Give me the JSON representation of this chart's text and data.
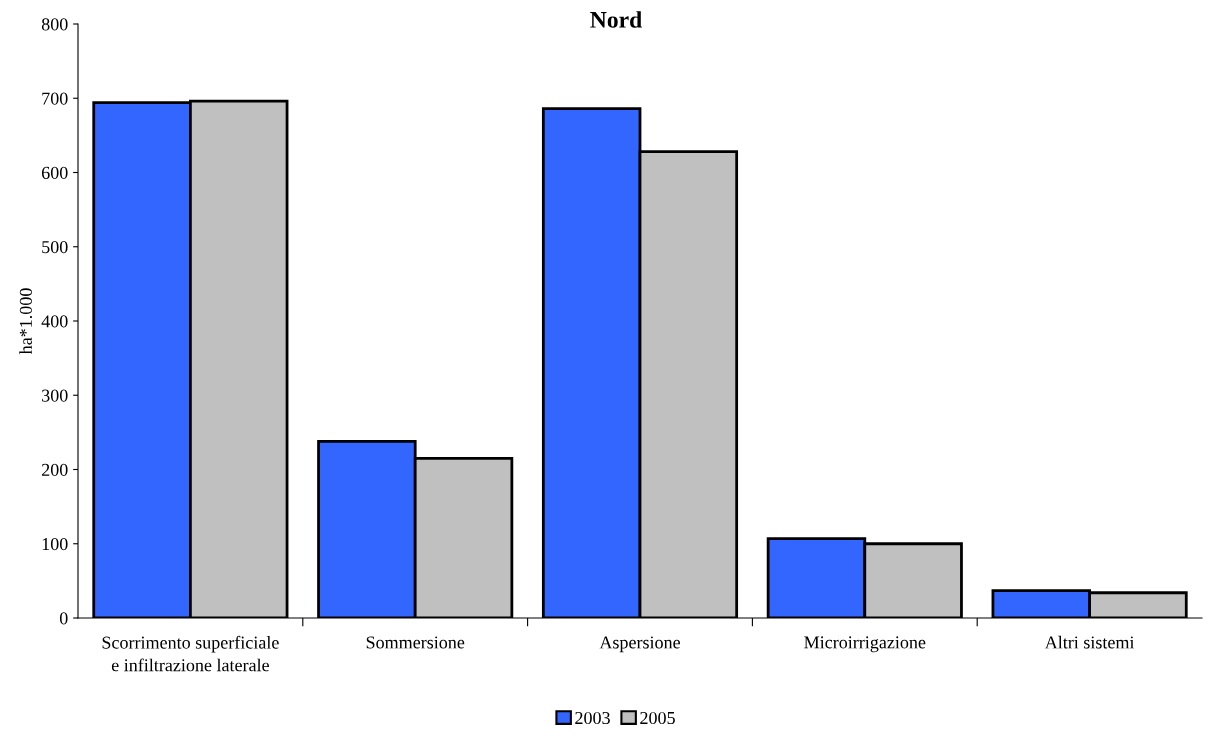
{
  "chart_data": {
    "type": "bar",
    "title": "Nord",
    "ylabel": "ha*1.000",
    "categories": [
      "Scorrimento superficiale\ne infiltrazione laterale",
      "Sommersione",
      "Aspersione",
      "Microirrigazione",
      "Altri sistemi"
    ],
    "series": [
      {
        "name": "2003",
        "color": "#3366ff",
        "values": [
          694,
          238,
          686,
          107,
          37
        ]
      },
      {
        "name": "2005",
        "color": "#c0c0c0",
        "values": [
          696,
          215,
          628,
          100,
          34
        ]
      }
    ],
    "ylim": [
      0,
      800
    ],
    "yticks": [
      0,
      100,
      200,
      300,
      400,
      500,
      600,
      700,
      800
    ],
    "grid": false,
    "legend": "bottom"
  }
}
